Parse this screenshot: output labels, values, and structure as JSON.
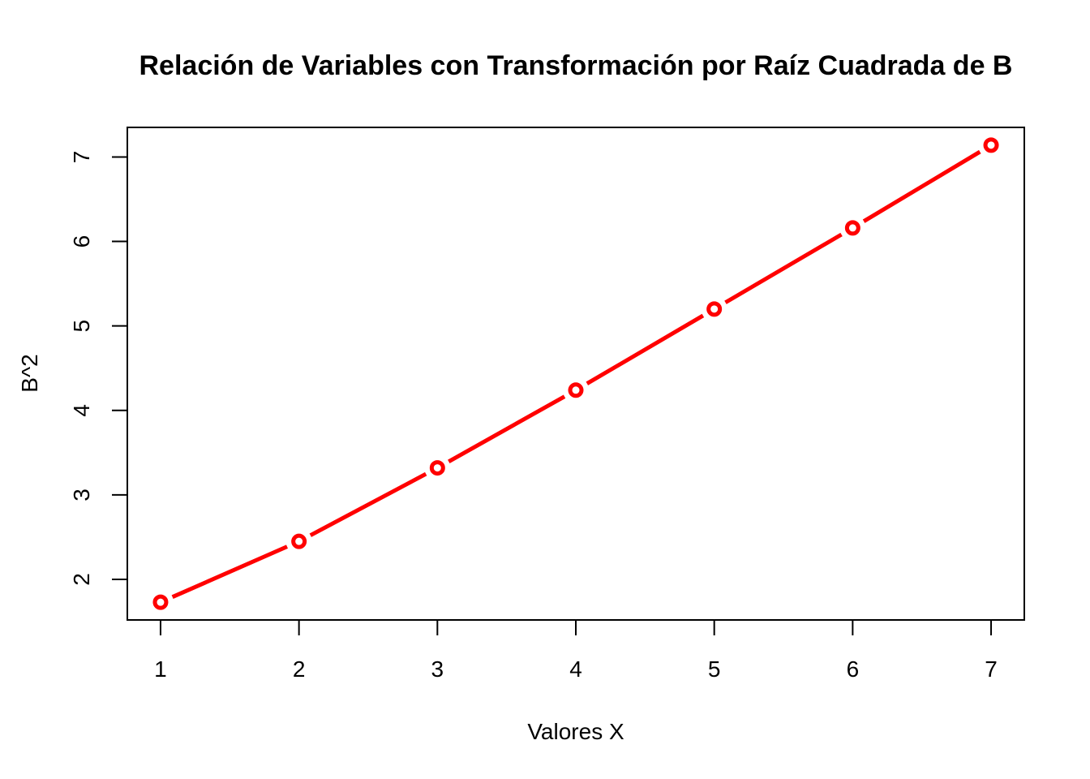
{
  "chart_data": {
    "type": "line",
    "title": "Relación de Variables con Transformación por Raíz Cuadrada de B",
    "xlabel": "Valores X",
    "ylabel": "B^2",
    "x": [
      1,
      2,
      3,
      4,
      5,
      6,
      7
    ],
    "series": [
      {
        "values": [
          1.73,
          2.45,
          3.32,
          4.24,
          5.2,
          6.16,
          7.14
        ]
      }
    ],
    "xticks": [
      "1",
      "2",
      "3",
      "4",
      "5",
      "6",
      "7"
    ],
    "yticks": [
      "2",
      "3",
      "4",
      "5",
      "6",
      "7"
    ],
    "xlim": [
      0.76,
      7.24
    ],
    "ylim": [
      1.52,
      7.35
    ],
    "grid": false,
    "line_color": "#ff0000",
    "marker": "open-circle"
  }
}
